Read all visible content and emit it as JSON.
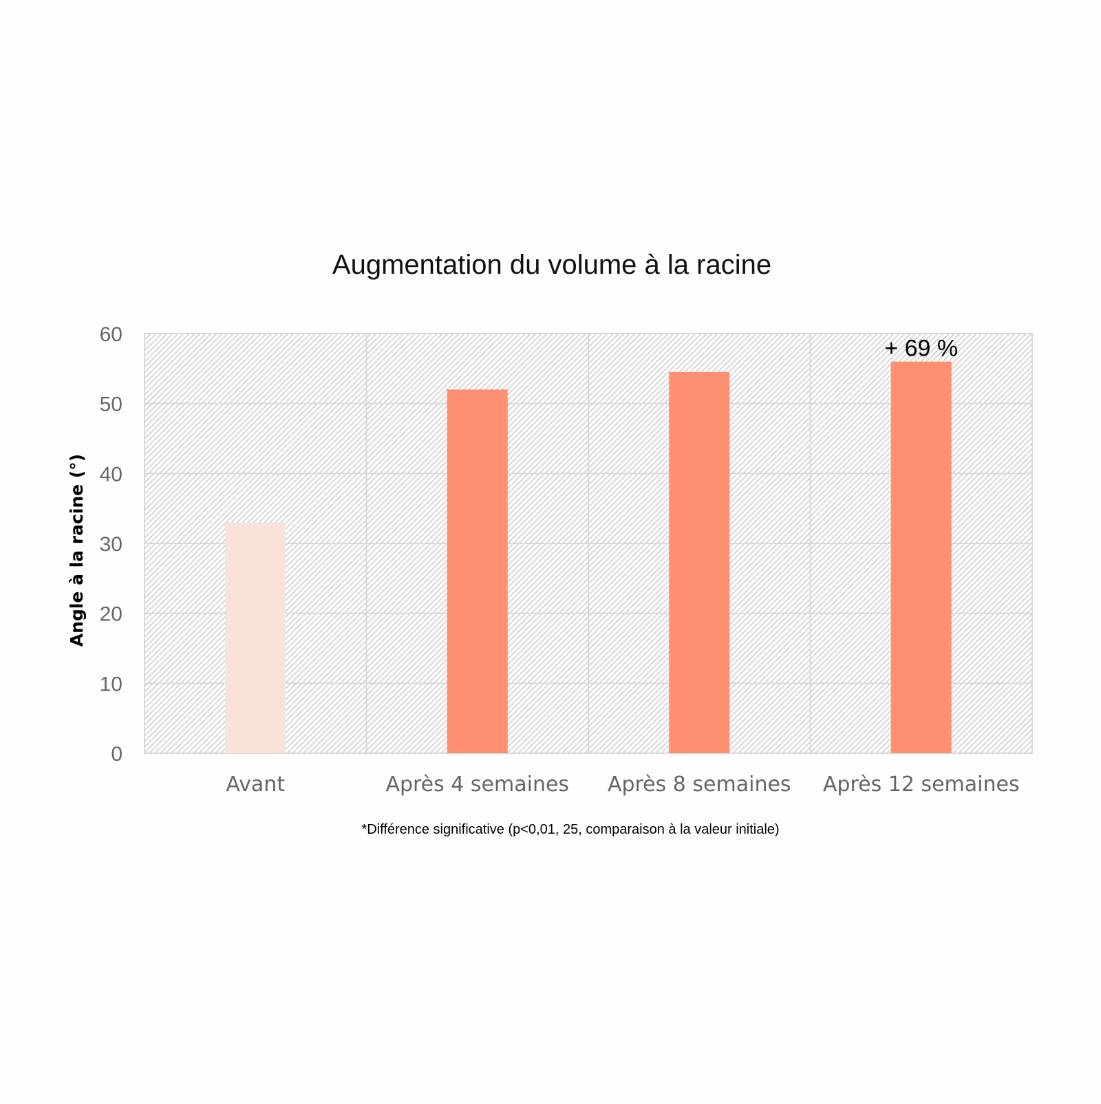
{
  "chart_data": {
    "type": "bar",
    "title": "Augmentation du volume à la racine",
    "ylabel": "Angle à la racine (°)",
    "xlabel": "",
    "categories": [
      "Avant",
      "Après 4 semaines",
      "Après 8 semaines",
      "Après 12 semaines"
    ],
    "values": [
      33,
      52,
      54.5,
      56
    ],
    "ylim": [
      0,
      60
    ],
    "yticks": [
      "0",
      "10",
      "20",
      "30",
      "40",
      "50",
      "60"
    ],
    "grid": true,
    "bar_colors": [
      "#f9e3d8",
      "#fe8f70",
      "#fe8f70",
      "#fe8f70"
    ],
    "annotation": {
      "text": "+ 69 %",
      "category_index": 3
    },
    "footnote": "*Différence significative (p<0,01, 25, comparaison à la valeur initiale)"
  }
}
